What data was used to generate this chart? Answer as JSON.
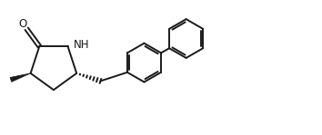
{
  "background": "#ffffff",
  "line_color": "#1a1a1a",
  "line_width": 1.4,
  "text_color": "#1a1a1a",
  "font_size": 8.5,
  "fig_width": 3.54,
  "fig_height": 1.49,
  "xlim": [
    0,
    9.5
  ],
  "ylim": [
    0,
    4.0
  ]
}
